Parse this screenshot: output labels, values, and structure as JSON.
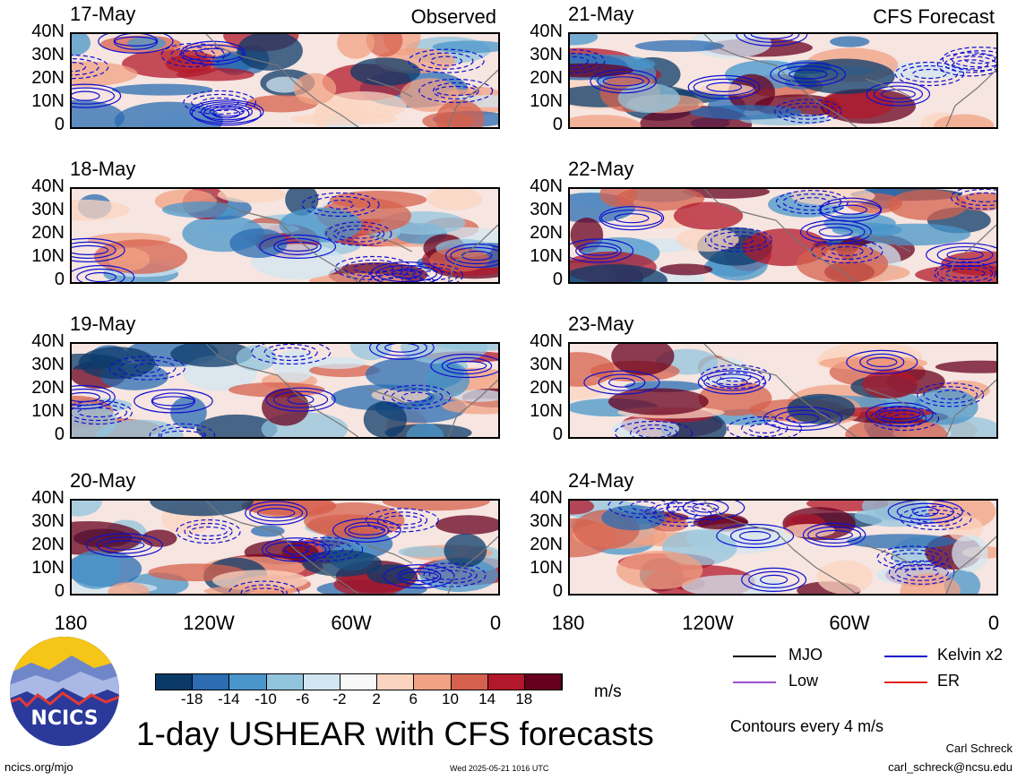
{
  "chart_data": {
    "type": "heatmap",
    "title": "1-day USHEAR with CFS forecasts",
    "column_titles": [
      "Observed",
      "CFS Forecast"
    ],
    "panels_observed": [
      "17-May",
      "18-May",
      "19-May",
      "20-May"
    ],
    "panels_forecast": [
      "21-May",
      "22-May",
      "23-May",
      "24-May"
    ],
    "y_ticks": [
      "40N",
      "30N",
      "20N",
      "10N",
      "0"
    ],
    "x_ticks": [
      "180",
      "120W",
      "60W",
      "0"
    ],
    "colorbar": {
      "unit": "m/s",
      "ticks": [
        "-18",
        "-14",
        "-10",
        "-6",
        "-2",
        "2",
        "6",
        "10",
        "14",
        "18"
      ],
      "colors": [
        "#0b3a69",
        "#2b6cb3",
        "#4a95c9",
        "#92c4de",
        "#d2e6f1",
        "#f8f8f8",
        "#fbd4c0",
        "#f1a284",
        "#d6604e",
        "#b2182b",
        "#67001f"
      ]
    },
    "legend": [
      {
        "label": "MJO",
        "color": "#000000"
      },
      {
        "label": "Kelvin x2",
        "color": "#1010d0"
      },
      {
        "label": "Low",
        "color": "#9c4fd0"
      },
      {
        "label": "ER",
        "color": "#e02020"
      }
    ],
    "contour_note": "Contours every 4 m/s"
  },
  "logo": {
    "text": "NCICS"
  },
  "footer": {
    "left": "ncics.org/mjo",
    "center": "Wed 2025-05-21 1016 UTC",
    "author": "Carl Schreck",
    "email": "carl_schreck@ncsu.edu"
  }
}
